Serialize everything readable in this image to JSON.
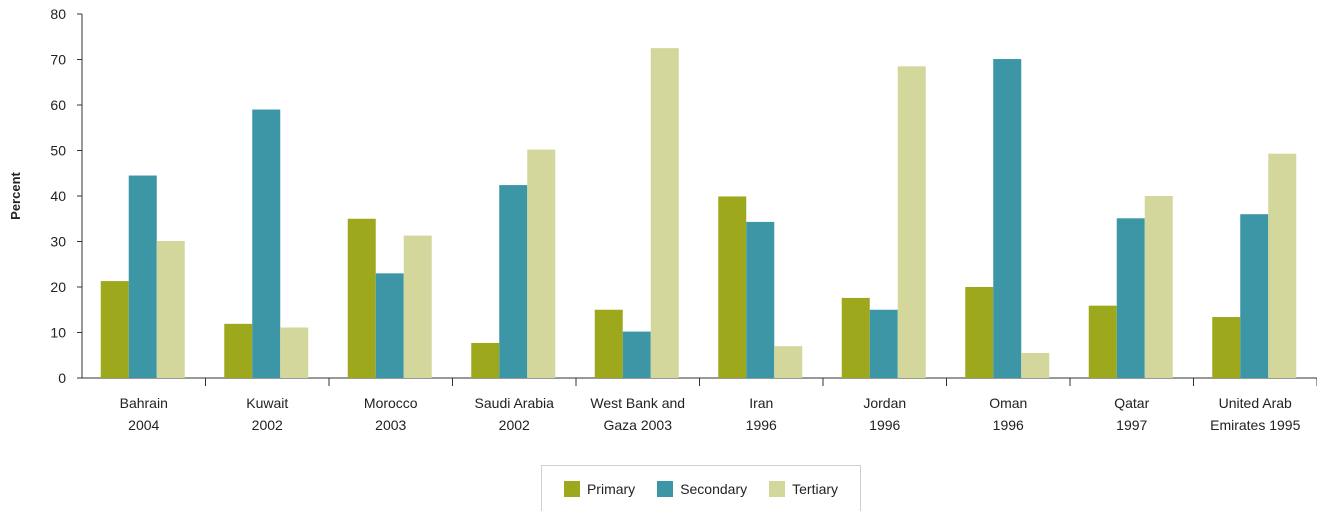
{
  "chart_data": {
    "type": "bar",
    "ylabel": "Percent",
    "ylim": [
      0,
      80
    ],
    "yticks": [
      0,
      10,
      20,
      30,
      40,
      50,
      60,
      70,
      80
    ],
    "categories": [
      [
        "Bahrain",
        "2004"
      ],
      [
        "Kuwait",
        "2002"
      ],
      [
        "Morocco",
        "2003"
      ],
      [
        "Saudi Arabia",
        "2002"
      ],
      [
        "West Bank and",
        "Gaza 2003"
      ],
      [
        "Iran",
        "1996"
      ],
      [
        "Jordan",
        "1996"
      ],
      [
        "Oman",
        "1996"
      ],
      [
        "Qatar",
        "1997"
      ],
      [
        "United Arab",
        "Emirates 1995"
      ]
    ],
    "series": [
      {
        "name": "Primary",
        "color": "#9ea81d",
        "values": [
          21.3,
          11.9,
          35.0,
          7.7,
          15.0,
          39.9,
          17.6,
          20.0,
          15.9,
          13.4
        ]
      },
      {
        "name": "Secondary",
        "color": "#3c96a5",
        "values": [
          44.5,
          59.0,
          23.0,
          42.4,
          10.2,
          34.3,
          15.0,
          70.1,
          35.1,
          36.0
        ]
      },
      {
        "name": "Tertiary",
        "color": "#d3d79c",
        "values": [
          30.1,
          11.1,
          31.3,
          50.2,
          72.5,
          7.0,
          68.5,
          5.5,
          40.0,
          49.3
        ]
      }
    ],
    "legend_position": "bottom-center",
    "grid": false
  }
}
